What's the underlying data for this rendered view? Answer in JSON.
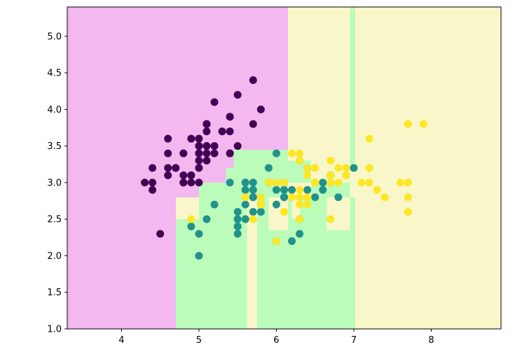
{
  "chart_data": {
    "type": "scatter",
    "title": "",
    "xlabel": "",
    "ylabel": "",
    "xlim": [
      3.3,
      8.9
    ],
    "ylim": [
      1.0,
      5.4
    ],
    "x_ticks": [
      4,
      5,
      6,
      7,
      8
    ],
    "x_tick_labels": [
      "4",
      "5",
      "6",
      "7",
      "8"
    ],
    "y_ticks": [
      1.0,
      1.5,
      2.0,
      2.5,
      3.0,
      3.5,
      4.0,
      4.5,
      5.0
    ],
    "y_tick_labels": [
      "1.0",
      "1.5",
      "2.0",
      "2.5",
      "3.0",
      "3.5",
      "4.0",
      "4.5",
      "5.0"
    ],
    "grid": false,
    "legend": "none",
    "class_colors": [
      "#440154",
      "#21918c",
      "#fde725"
    ],
    "region_colors": [
      "#f2b8ef",
      "#bbfcbb",
      "#f9f7c9"
    ],
    "decision_regions": [
      {
        "class": 0,
        "x": [
          3.3,
          6.15
        ],
        "y": [
          1.0,
          5.4
        ]
      },
      {
        "class": 2,
        "x": [
          6.15,
          8.9
        ],
        "y": [
          1.0,
          5.4
        ]
      },
      {
        "class": 1,
        "x": [
          6.95,
          7.02
        ],
        "y": [
          3.2,
          5.4
        ]
      },
      {
        "class": 1,
        "x": [
          4.7,
          7.02
        ],
        "y": [
          1.0,
          2.8
        ]
      },
      {
        "class": 1,
        "x": [
          4.7,
          5.0
        ],
        "y": [
          1.0,
          2.5
        ]
      },
      {
        "class": 1,
        "x": [
          5.0,
          5.35
        ],
        "y": [
          2.8,
          3.0
        ]
      },
      {
        "class": 1,
        "x": [
          5.35,
          5.45
        ],
        "y": [
          2.8,
          3.2
        ]
      },
      {
        "class": 1,
        "x": [
          5.45,
          6.15
        ],
        "y": [
          2.8,
          3.45
        ]
      },
      {
        "class": 1,
        "x": [
          6.15,
          6.45
        ],
        "y": [
          3.0,
          3.3
        ]
      },
      {
        "class": 1,
        "x": [
          6.45,
          6.95
        ],
        "y": [
          2.8,
          3.0
        ]
      },
      {
        "class": 2,
        "x": [
          4.7,
          5.0
        ],
        "y": [
          2.5,
          2.8
        ]
      },
      {
        "class": 2,
        "x": [
          5.62,
          5.75
        ],
        "y": [
          1.0,
          2.8
        ]
      },
      {
        "class": 2,
        "x": [
          5.9,
          6.15
        ],
        "y": [
          2.35,
          2.8
        ]
      },
      {
        "class": 2,
        "x": [
          6.15,
          6.45
        ],
        "y": [
          2.8,
          3.0
        ]
      },
      {
        "class": 2,
        "x": [
          6.2,
          6.3
        ],
        "y": [
          2.5,
          2.8
        ]
      },
      {
        "class": 2,
        "x": [
          6.65,
          6.95
        ],
        "y": [
          2.35,
          2.8
        ]
      },
      {
        "class": 2,
        "x": [
          6.85,
          6.95
        ],
        "y": [
          3.0,
          3.2
        ]
      },
      {
        "class": 2,
        "x": [
          7.02,
          8.9
        ],
        "y": [
          1.0,
          5.4
        ]
      }
    ],
    "series": [
      {
        "class": 0,
        "points": [
          [
            5.1,
            3.5
          ],
          [
            4.9,
            3.0
          ],
          [
            4.7,
            3.2
          ],
          [
            4.6,
            3.1
          ],
          [
            5.0,
            3.6
          ],
          [
            5.4,
            3.9
          ],
          [
            4.6,
            3.4
          ],
          [
            5.0,
            3.4
          ],
          [
            4.4,
            2.9
          ],
          [
            4.9,
            3.1
          ],
          [
            5.4,
            3.7
          ],
          [
            4.8,
            3.4
          ],
          [
            4.8,
            3.0
          ],
          [
            4.3,
            3.0
          ],
          [
            5.8,
            4.0
          ],
          [
            5.7,
            4.4
          ],
          [
            5.4,
            3.9
          ],
          [
            5.1,
            3.5
          ],
          [
            5.7,
            3.8
          ],
          [
            5.1,
            3.8
          ],
          [
            5.4,
            3.4
          ],
          [
            5.1,
            3.7
          ],
          [
            4.6,
            3.6
          ],
          [
            5.1,
            3.3
          ],
          [
            4.8,
            3.4
          ],
          [
            5.0,
            3.0
          ],
          [
            5.0,
            3.4
          ],
          [
            5.2,
            3.5
          ],
          [
            5.2,
            3.4
          ],
          [
            4.7,
            3.2
          ],
          [
            4.8,
            3.1
          ],
          [
            5.4,
            3.4
          ],
          [
            5.2,
            4.1
          ],
          [
            5.5,
            4.2
          ],
          [
            4.9,
            3.1
          ],
          [
            5.0,
            3.2
          ],
          [
            5.5,
            3.5
          ],
          [
            4.9,
            3.6
          ],
          [
            4.4,
            3.0
          ],
          [
            5.1,
            3.4
          ],
          [
            5.0,
            3.5
          ],
          [
            4.5,
            2.3
          ],
          [
            4.4,
            3.2
          ],
          [
            5.0,
            3.5
          ],
          [
            5.1,
            3.8
          ],
          [
            4.8,
            3.0
          ],
          [
            5.1,
            3.8
          ],
          [
            4.6,
            3.2
          ],
          [
            5.3,
            3.7
          ],
          [
            5.0,
            3.3
          ]
        ]
      },
      {
        "class": 1,
        "points": [
          [
            7.0,
            3.2
          ],
          [
            6.4,
            3.2
          ],
          [
            6.9,
            3.1
          ],
          [
            5.5,
            2.3
          ],
          [
            6.5,
            2.8
          ],
          [
            5.7,
            2.8
          ],
          [
            6.3,
            3.3
          ],
          [
            4.9,
            2.4
          ],
          [
            6.6,
            2.9
          ],
          [
            5.2,
            2.7
          ],
          [
            5.0,
            2.0
          ],
          [
            5.9,
            3.0
          ],
          [
            6.0,
            2.2
          ],
          [
            6.1,
            2.9
          ],
          [
            5.6,
            2.9
          ],
          [
            6.7,
            3.1
          ],
          [
            5.6,
            3.0
          ],
          [
            5.8,
            2.7
          ],
          [
            6.2,
            2.2
          ],
          [
            5.6,
            2.5
          ],
          [
            5.9,
            3.2
          ],
          [
            6.1,
            2.8
          ],
          [
            6.3,
            2.5
          ],
          [
            6.1,
            2.8
          ],
          [
            6.4,
            2.9
          ],
          [
            6.6,
            3.0
          ],
          [
            6.8,
            2.8
          ],
          [
            6.7,
            3.0
          ],
          [
            6.0,
            2.9
          ],
          [
            5.7,
            2.6
          ],
          [
            5.5,
            2.4
          ],
          [
            5.5,
            2.4
          ],
          [
            5.8,
            2.7
          ],
          [
            6.0,
            2.7
          ],
          [
            5.4,
            3.0
          ],
          [
            6.0,
            3.4
          ],
          [
            6.7,
            3.1
          ],
          [
            6.3,
            2.3
          ],
          [
            5.6,
            3.0
          ],
          [
            5.5,
            2.5
          ],
          [
            5.5,
            2.6
          ],
          [
            6.1,
            3.0
          ],
          [
            5.8,
            2.6
          ],
          [
            5.0,
            2.3
          ],
          [
            5.6,
            2.7
          ],
          [
            5.7,
            3.0
          ],
          [
            5.7,
            2.9
          ],
          [
            6.2,
            2.9
          ],
          [
            5.1,
            2.5
          ],
          [
            5.7,
            2.8
          ]
        ]
      },
      {
        "class": 2,
        "points": [
          [
            6.3,
            3.3
          ],
          [
            5.8,
            2.7
          ],
          [
            7.1,
            3.0
          ],
          [
            6.3,
            2.9
          ],
          [
            6.5,
            3.0
          ],
          [
            7.6,
            3.0
          ],
          [
            4.9,
            2.5
          ],
          [
            7.3,
            2.9
          ],
          [
            6.7,
            2.5
          ],
          [
            7.2,
            3.6
          ],
          [
            6.5,
            3.2
          ],
          [
            6.4,
            2.7
          ],
          [
            6.8,
            3.0
          ],
          [
            5.7,
            2.5
          ],
          [
            5.8,
            2.8
          ],
          [
            6.4,
            3.2
          ],
          [
            6.5,
            3.0
          ],
          [
            7.7,
            3.8
          ],
          [
            7.7,
            2.6
          ],
          [
            6.0,
            2.2
          ],
          [
            6.9,
            3.2
          ],
          [
            5.6,
            2.8
          ],
          [
            7.7,
            2.8
          ],
          [
            6.3,
            2.7
          ],
          [
            6.7,
            3.3
          ],
          [
            7.2,
            3.2
          ],
          [
            6.2,
            2.8
          ],
          [
            6.1,
            3.0
          ],
          [
            6.4,
            2.8
          ],
          [
            7.2,
            3.0
          ],
          [
            7.4,
            2.8
          ],
          [
            7.9,
            3.8
          ],
          [
            6.4,
            2.8
          ],
          [
            6.3,
            2.8
          ],
          [
            6.1,
            2.6
          ],
          [
            7.7,
            3.0
          ],
          [
            6.3,
            3.4
          ],
          [
            6.4,
            3.1
          ],
          [
            6.0,
            3.0
          ],
          [
            6.9,
            3.1
          ],
          [
            6.7,
            3.1
          ],
          [
            6.9,
            3.1
          ],
          [
            5.8,
            2.7
          ],
          [
            6.8,
            3.2
          ],
          [
            6.7,
            3.3
          ],
          [
            6.7,
            3.0
          ],
          [
            6.3,
            2.5
          ],
          [
            6.5,
            3.0
          ],
          [
            6.2,
            3.4
          ],
          [
            5.9,
            3.0
          ]
        ]
      }
    ]
  }
}
